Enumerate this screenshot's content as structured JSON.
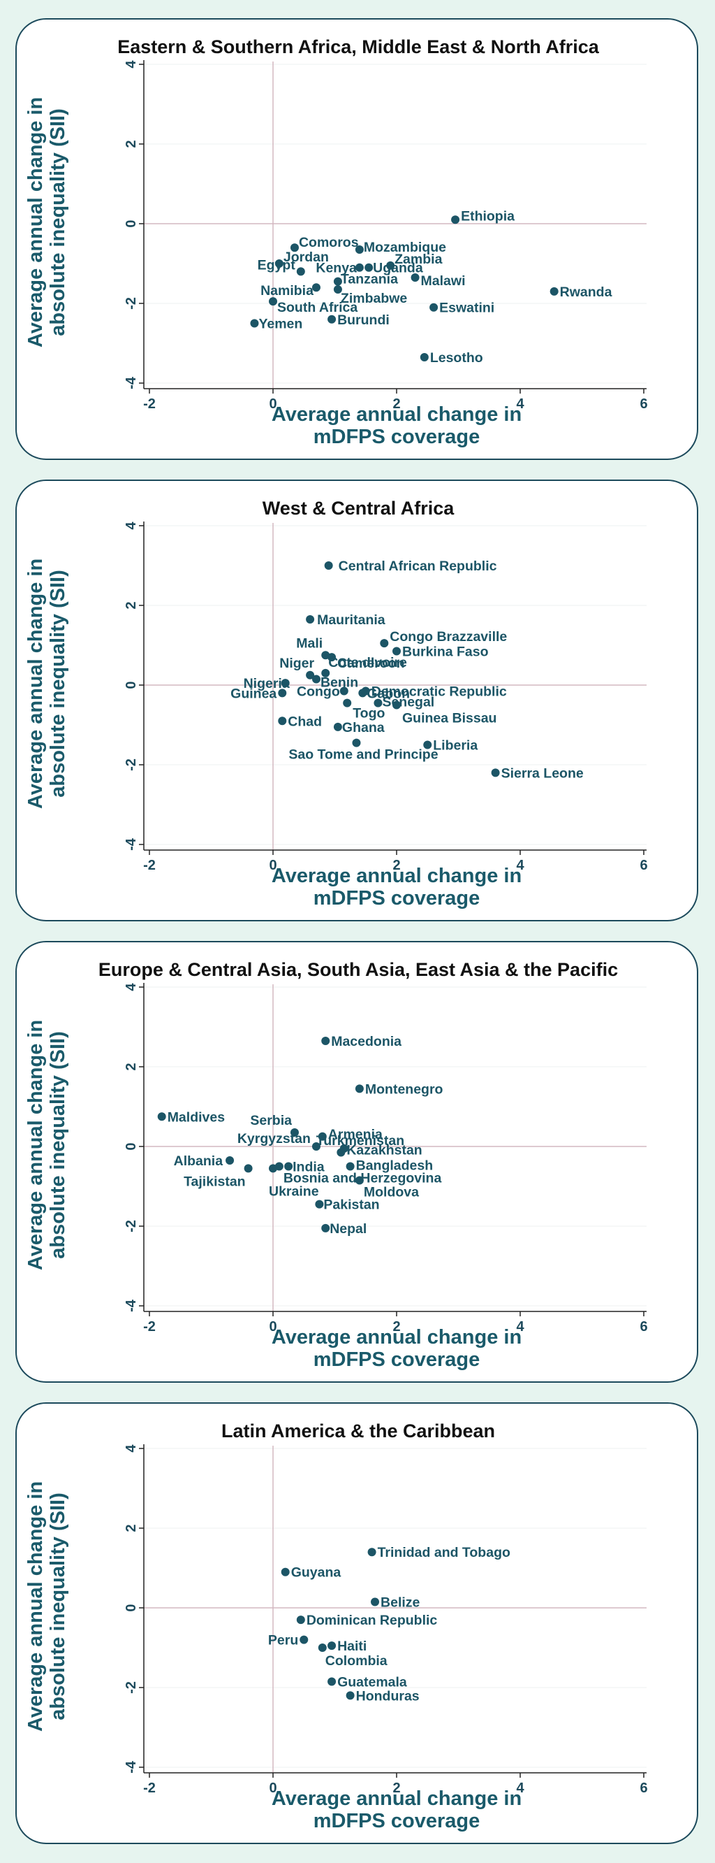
{
  "chart_data": [
    {
      "type": "scatter",
      "title": "Eastern & Southern Africa, Middle East & North Africa",
      "xlabel": [
        "Average annual change in",
        "mDFPS coverage"
      ],
      "ylabel": [
        "Average annual change in",
        "absolute inequality (SII)"
      ],
      "xlim": [
        -2,
        6
      ],
      "ylim": [
        -4,
        4
      ],
      "xticks": [
        "-2",
        "0",
        "2",
        "4",
        "6"
      ],
      "yticks": [
        "-4",
        "-2",
        "0",
        "2",
        "4"
      ],
      "points": [
        {
          "label": "Ethiopia",
          "x": 2.95,
          "y": 0.1
        },
        {
          "label": "Comoros",
          "x": 0.35,
          "y": -0.6
        },
        {
          "label": "Mozambique",
          "x": 1.4,
          "y": -0.65
        },
        {
          "label": "Zambia",
          "x": 1.9,
          "y": -1.05
        },
        {
          "label": "Jordan",
          "x": 0.1,
          "y": -1.0
        },
        {
          "label": "Kenya",
          "x": 1.4,
          "y": -1.1
        },
        {
          "label": "Uganda",
          "x": 1.55,
          "y": -1.1
        },
        {
          "label": "Egypt",
          "x": 0.45,
          "y": -1.2
        },
        {
          "label": "Malawi",
          "x": 2.3,
          "y": -1.35
        },
        {
          "label": "Tanzania",
          "x": 1.05,
          "y": -1.45
        },
        {
          "label": "Namibia",
          "x": 0.7,
          "y": -1.6
        },
        {
          "label": "Zimbabwe",
          "x": 1.05,
          "y": -1.65
        },
        {
          "label": "Rwanda",
          "x": 4.55,
          "y": -1.7
        },
        {
          "label": "South Africa",
          "x": 0.0,
          "y": -1.95
        },
        {
          "label": "Eswatini",
          "x": 2.6,
          "y": -2.1
        },
        {
          "label": "Yemen",
          "x": -0.3,
          "y": -2.5
        },
        {
          "label": "Burundi",
          "x": 0.95,
          "y": -2.4
        },
        {
          "label": "Lesotho",
          "x": 2.45,
          "y": -3.35
        }
      ]
    },
    {
      "type": "scatter",
      "title": "West & Central Africa",
      "xlabel": [
        "Average annual change in",
        "mDFPS coverage"
      ],
      "ylabel": [
        "Average annual change in",
        "absolute inequality (SII)"
      ],
      "xlim": [
        -2,
        6
      ],
      "ylim": [
        -4,
        4
      ],
      "xticks": [
        "-2",
        "0",
        "2",
        "4",
        "6"
      ],
      "yticks": [
        "-4",
        "-2",
        "0",
        "2",
        "4"
      ],
      "points": [
        {
          "label": "Central African Republic",
          "x": 0.9,
          "y": 3.0
        },
        {
          "label": "Mauritania",
          "x": 0.6,
          "y": 1.65
        },
        {
          "label": "Congo Brazzaville",
          "x": 1.8,
          "y": 1.05
        },
        {
          "label": "Burkina Faso",
          "x": 2.0,
          "y": 0.85
        },
        {
          "label": "Mali",
          "x": 0.85,
          "y": 0.75
        },
        {
          "label": "Cameroon",
          "x": 0.95,
          "y": 0.7
        },
        {
          "label": "Cote dIvoire",
          "x": 0.85,
          "y": 0.3
        },
        {
          "label": "Niger",
          "x": 0.6,
          "y": 0.25
        },
        {
          "label": "Benin",
          "x": 0.7,
          "y": 0.15
        },
        {
          "label": "Nigeria",
          "x": 0.2,
          "y": 0.05
        },
        {
          "label": "Congo",
          "x": 1.15,
          "y": -0.15
        },
        {
          "label": "Gabon",
          "x": 1.45,
          "y": -0.2
        },
        {
          "label": "Democratic Republic",
          "x": 1.5,
          "y": -0.15
        },
        {
          "label": "Guinea",
          "x": 0.15,
          "y": -0.2
        },
        {
          "label": "Senegal",
          "x": 1.7,
          "y": -0.45
        },
        {
          "label": "Togo",
          "x": 1.2,
          "y": -0.45
        },
        {
          "label": "Guinea Bissau",
          "x": 2.0,
          "y": -0.5
        },
        {
          "label": "Chad",
          "x": 0.15,
          "y": -0.9
        },
        {
          "label": "Ghana",
          "x": 1.05,
          "y": -1.05
        },
        {
          "label": "Sao Tome and Principe",
          "x": 1.35,
          "y": -1.45
        },
        {
          "label": "Liberia",
          "x": 2.5,
          "y": -1.5
        },
        {
          "label": "Sierra Leone",
          "x": 3.6,
          "y": -2.2
        }
      ]
    },
    {
      "type": "scatter",
      "title": "Europe & Central Asia, South Asia, East Asia & the Pacific",
      "xlabel": [
        "Average annual change in",
        "mDFPS coverage"
      ],
      "ylabel": [
        "Average annual change in",
        "absolute inequality (SII)"
      ],
      "xlim": [
        -2,
        6
      ],
      "ylim": [
        -4,
        4
      ],
      "xticks": [
        "-2",
        "0",
        "2",
        "4",
        "6"
      ],
      "yticks": [
        "-4",
        "-2",
        "0",
        "2",
        "4"
      ],
      "points": [
        {
          "label": "Macedonia",
          "x": 0.85,
          "y": 2.65
        },
        {
          "label": "Montenegro",
          "x": 1.4,
          "y": 1.45
        },
        {
          "label": "Maldives",
          "x": -1.8,
          "y": 0.75
        },
        {
          "label": "Serbia",
          "x": 0.35,
          "y": 0.35
        },
        {
          "label": "Armenia",
          "x": 0.8,
          "y": 0.25
        },
        {
          "label": "Kyrgyzstan",
          "x": 0.7,
          "y": 0.0
        },
        {
          "label": "Turkmenistan",
          "x": 1.15,
          "y": -0.05
        },
        {
          "label": "Kazakhstan",
          "x": 1.1,
          "y": -0.15
        },
        {
          "label": "Albania",
          "x": -0.7,
          "y": -0.35
        },
        {
          "label": "Bangladesh",
          "x": 1.25,
          "y": -0.5
        },
        {
          "label": "India",
          "x": 0.25,
          "y": -0.5
        },
        {
          "label": "Tajikistan",
          "x": -0.4,
          "y": -0.55
        },
        {
          "label": "Bosnia and Herzegovina",
          "x": 0.1,
          "y": -0.5
        },
        {
          "label": "Ukraine",
          "x": 0.0,
          "y": -0.55
        },
        {
          "label": "Moldova",
          "x": 1.4,
          "y": -0.85
        },
        {
          "label": "Pakistan",
          "x": 0.75,
          "y": -1.45
        },
        {
          "label": "Nepal",
          "x": 0.85,
          "y": -2.05
        }
      ]
    },
    {
      "type": "scatter",
      "title": "Latin America & the Caribbean",
      "xlabel": [
        "Average annual change in",
        "mDFPS coverage"
      ],
      "ylabel": [
        "Average annual change in",
        "absolute inequality (SII)"
      ],
      "xlim": [
        -2,
        6
      ],
      "ylim": [
        -4,
        4
      ],
      "xticks": [
        "-2",
        "0",
        "2",
        "4",
        "6"
      ],
      "yticks": [
        "-4",
        "-2",
        "0",
        "2",
        "4"
      ],
      "points": [
        {
          "label": "Trinidad and Tobago",
          "x": 1.6,
          "y": 1.4
        },
        {
          "label": "Guyana",
          "x": 0.2,
          "y": 0.9
        },
        {
          "label": "Belize",
          "x": 1.65,
          "y": 0.15
        },
        {
          "label": "Dominican Republic",
          "x": 0.45,
          "y": -0.3
        },
        {
          "label": "Peru",
          "x": 0.5,
          "y": -0.8
        },
        {
          "label": "Haiti",
          "x": 0.95,
          "y": -0.95
        },
        {
          "label": "Colombia",
          "x": 0.8,
          "y": -1.0
        },
        {
          "label": "Guatemala",
          "x": 0.95,
          "y": -1.85
        },
        {
          "label": "Honduras",
          "x": 1.25,
          "y": -2.2
        }
      ]
    }
  ]
}
